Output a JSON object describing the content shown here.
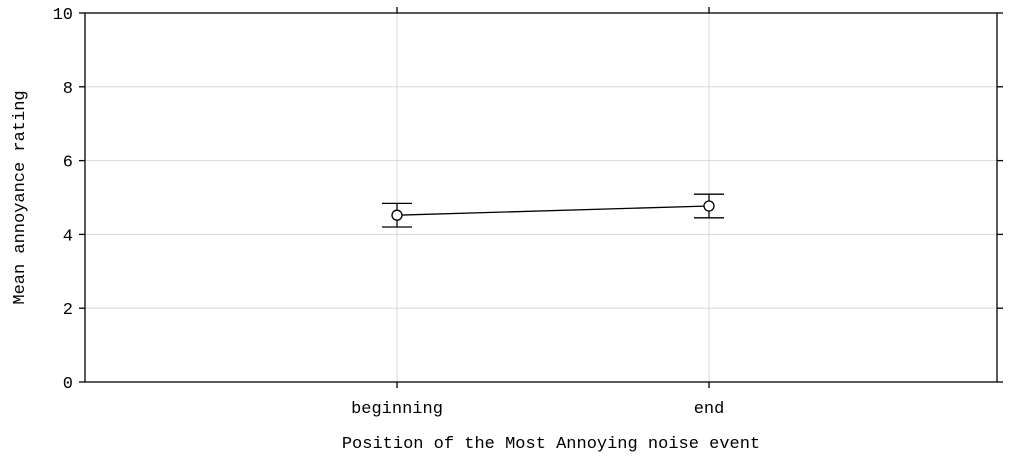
{
  "chart_data": {
    "type": "line",
    "title": "",
    "xlabel": "Position of the Most Annoying noise event",
    "ylabel": "Mean annoyance rating",
    "categories": [
      "beginning",
      "end"
    ],
    "series": [
      {
        "values": [
          4.52,
          4.77
        ],
        "error_low": [
          4.2,
          4.45
        ],
        "error_high": [
          4.84,
          5.09
        ],
        "marker": "open-circle",
        "color": "#000000"
      }
    ],
    "ylim": [
      0,
      10
    ],
    "yticks": [
      "0",
      "2",
      "4",
      "6",
      "8",
      "10"
    ],
    "grid": true,
    "legend": "none"
  }
}
